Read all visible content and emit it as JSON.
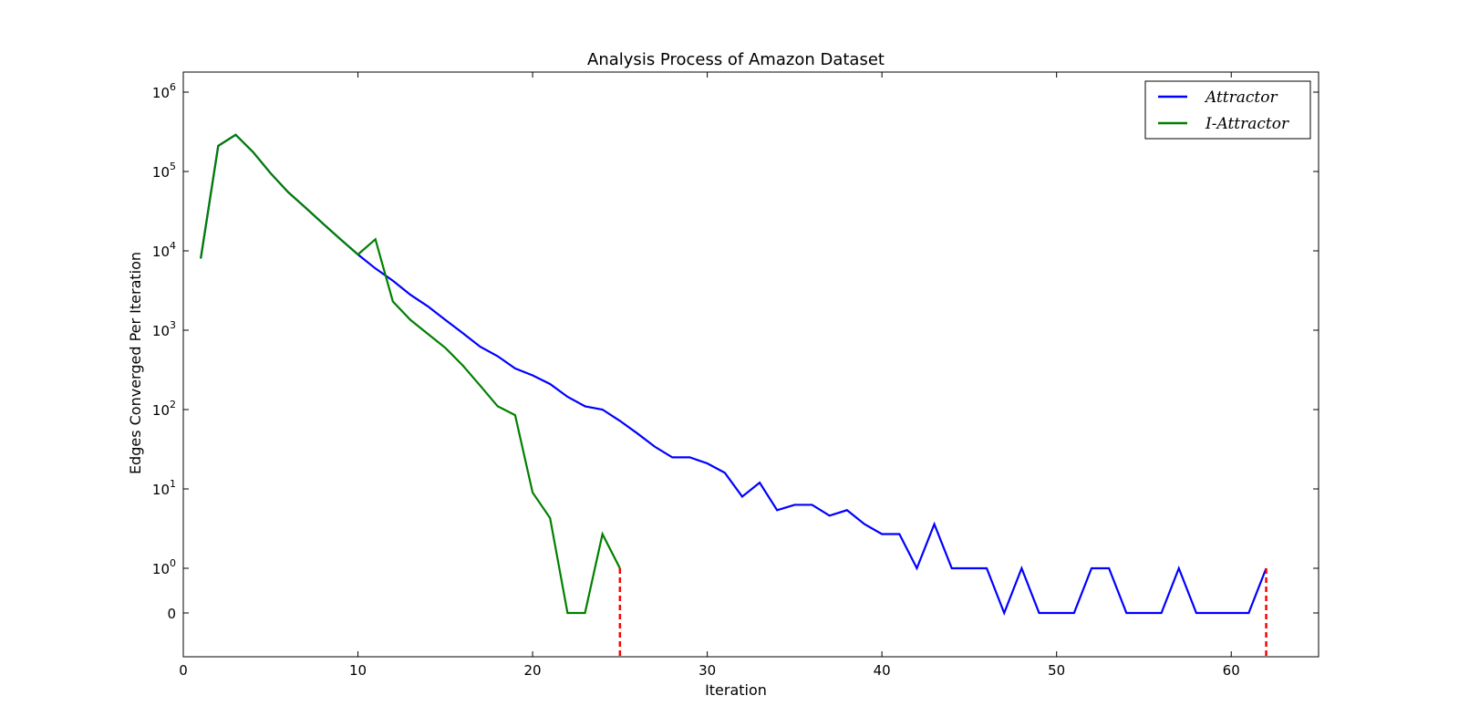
{
  "chart_data": {
    "type": "line",
    "title": "Analysis Process of Amazon Dataset",
    "xlabel": "Iteration",
    "ylabel": "Edges Converged Per Iteration",
    "xlim": [
      0,
      65
    ],
    "x_ticks": [
      {
        "value": 0,
        "label": "0"
      },
      {
        "value": 10,
        "label": "10"
      },
      {
        "value": 20,
        "label": "20"
      },
      {
        "value": 30,
        "label": "30"
      },
      {
        "value": 40,
        "label": "40"
      },
      {
        "value": 50,
        "label": "50"
      },
      {
        "value": 60,
        "label": "60"
      }
    ],
    "y_scale": "symlog",
    "y_ticks": [
      {
        "value": 0,
        "base": "0",
        "exp": ""
      },
      {
        "value": 1,
        "base": "10",
        "exp": "0"
      },
      {
        "value": 10,
        "base": "10",
        "exp": "1"
      },
      {
        "value": 100,
        "base": "10",
        "exp": "2"
      },
      {
        "value": 1000,
        "base": "10",
        "exp": "3"
      },
      {
        "value": 10000,
        "base": "10",
        "exp": "4"
      },
      {
        "value": 100000,
        "base": "10",
        "exp": "5"
      },
      {
        "value": 1000000,
        "base": "10",
        "exp": "6"
      }
    ],
    "legend_position": "top-right",
    "series": [
      {
        "name": "Attractor",
        "color": "#0000ff",
        "x": [
          1,
          2,
          3,
          4,
          5,
          6,
          7,
          8,
          9,
          10,
          11,
          12,
          13,
          14,
          15,
          16,
          17,
          18,
          19,
          20,
          21,
          22,
          23,
          24,
          25,
          26,
          27,
          28,
          29,
          30,
          31,
          32,
          33,
          34,
          35,
          36,
          37,
          38,
          39,
          40,
          41,
          42,
          43,
          44,
          45,
          46,
          47,
          48,
          49,
          50,
          51,
          52,
          53,
          54,
          55,
          56,
          57,
          58,
          59,
          60,
          61,
          62
        ],
        "values": [
          8000,
          210000,
          290000,
          175000,
          95000,
          55000,
          35000,
          22000,
          14000,
          9000,
          6000,
          4200,
          2800,
          2000,
          1350,
          920,
          620,
          470,
          330,
          270,
          210,
          145,
          110,
          100,
          72,
          50,
          34,
          25,
          25,
          21,
          16,
          8,
          12,
          5.4,
          6.3,
          6.3,
          4.6,
          5.4,
          3.6,
          2.7,
          2.7,
          1,
          3.6,
          1,
          1,
          1,
          0,
          1,
          0,
          0,
          0,
          1,
          1,
          0,
          0,
          0,
          1,
          0,
          0,
          0,
          0,
          1
        ]
      },
      {
        "name": "I-Attractor",
        "color": "#008000",
        "x": [
          1,
          2,
          3,
          4,
          5,
          6,
          7,
          8,
          9,
          10,
          11,
          12,
          13,
          14,
          15,
          16,
          17,
          18,
          19,
          20,
          21,
          22,
          23,
          24,
          25
        ],
        "values": [
          8000,
          210000,
          290000,
          175000,
          95000,
          55000,
          35000,
          22000,
          14000,
          9000,
          14000,
          2300,
          1350,
          900,
          600,
          360,
          200,
          110,
          85,
          9,
          4.3,
          0,
          0,
          2.7,
          1
        ]
      }
    ],
    "end_markers": [
      {
        "x": 25,
        "y": 1,
        "color": "#ff0000"
      },
      {
        "x": 62,
        "y": 1,
        "color": "#ff0000"
      }
    ]
  }
}
